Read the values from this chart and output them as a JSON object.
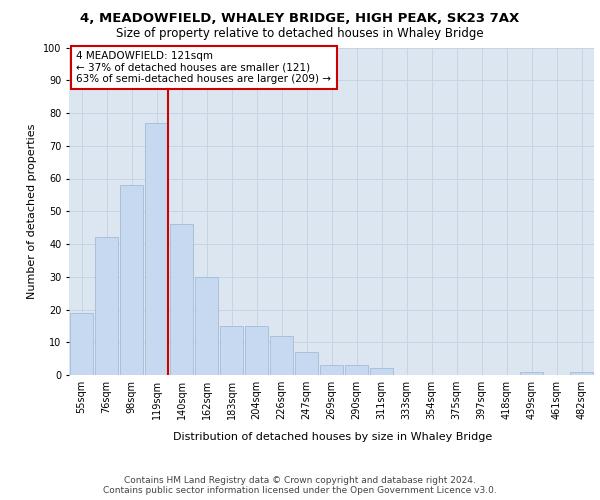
{
  "title_line1": "4, MEADOWFIELD, WHALEY BRIDGE, HIGH PEAK, SK23 7AX",
  "title_line2": "Size of property relative to detached houses in Whaley Bridge",
  "xlabel": "Distribution of detached houses by size in Whaley Bridge",
  "ylabel": "Number of detached properties",
  "categories": [
    "55sqm",
    "76sqm",
    "98sqm",
    "119sqm",
    "140sqm",
    "162sqm",
    "183sqm",
    "204sqm",
    "226sqm",
    "247sqm",
    "269sqm",
    "290sqm",
    "311sqm",
    "333sqm",
    "354sqm",
    "375sqm",
    "397sqm",
    "418sqm",
    "439sqm",
    "461sqm",
    "482sqm"
  ],
  "values": [
    19,
    42,
    58,
    77,
    46,
    30,
    15,
    15,
    12,
    7,
    3,
    3,
    2,
    0,
    0,
    0,
    0,
    0,
    1,
    0,
    1
  ],
  "bar_color": "#c6d9f0",
  "bar_edge_color": "#9ab5d0",
  "vline_color": "#cc0000",
  "annotation_text": "4 MEADOWFIELD: 121sqm\n← 37% of detached houses are smaller (121)\n63% of semi-detached houses are larger (209) →",
  "annotation_box_color": "#ffffff",
  "annotation_box_edge": "#cc0000",
  "ylim": [
    0,
    100
  ],
  "yticks": [
    0,
    10,
    20,
    30,
    40,
    50,
    60,
    70,
    80,
    90,
    100
  ],
  "grid_color": "#c8d4e4",
  "background_color": "#dce6f1",
  "footnote": "Contains HM Land Registry data © Crown copyright and database right 2024.\nContains public sector information licensed under the Open Government Licence v3.0.",
  "title_fontsize": 9.5,
  "subtitle_fontsize": 8.5,
  "axis_label_fontsize": 8,
  "tick_fontsize": 7,
  "annotation_fontsize": 7.5,
  "footnote_fontsize": 6.5
}
